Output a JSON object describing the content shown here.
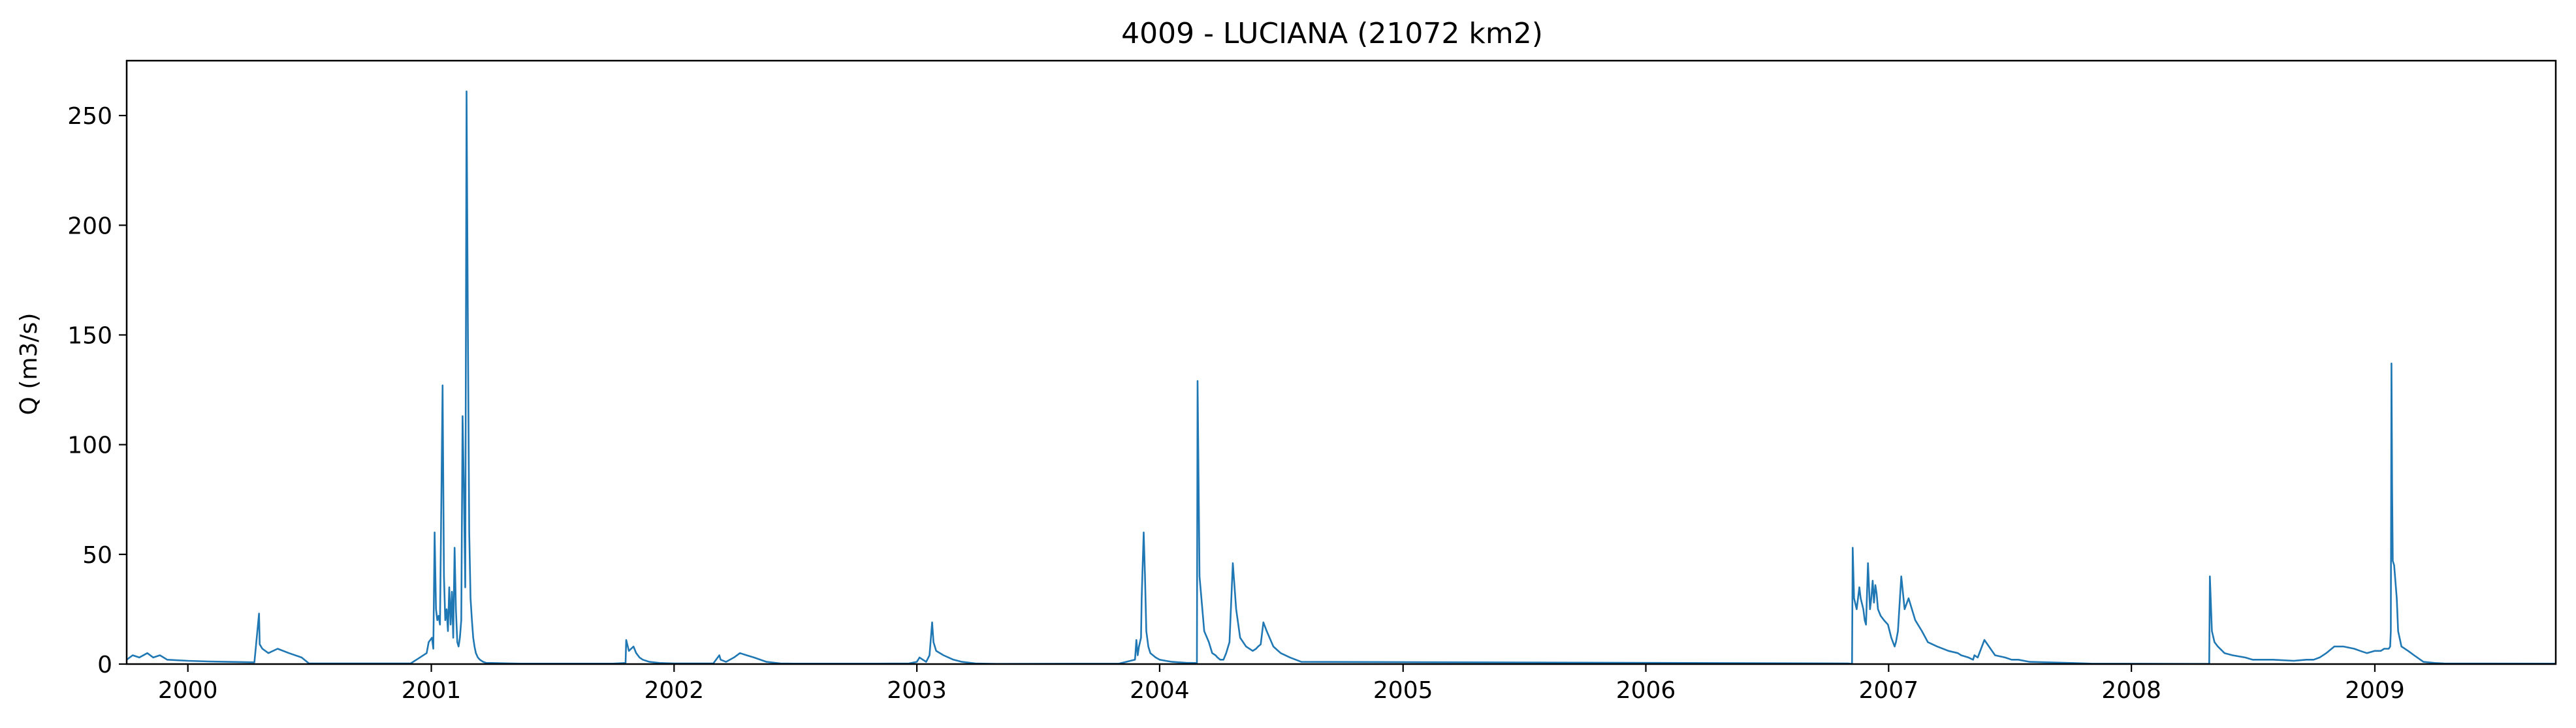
{
  "chart_data": {
    "type": "line",
    "title": "4009 - LUCIANA (21072 km2)",
    "xlabel": "",
    "ylabel": "Q (m3/s)",
    "xlim": [
      "1999-10-01",
      "2009-09-30"
    ],
    "ylim": [
      0,
      275
    ],
    "x_ticks": [
      "2000",
      "2001",
      "2002",
      "2003",
      "2004",
      "2005",
      "2006",
      "2007",
      "2008",
      "2009"
    ],
    "y_ticks": [
      0,
      50,
      100,
      150,
      200,
      250
    ],
    "grid": false,
    "line_color": "#1f77b4",
    "series": [
      {
        "x": [
          "1999-10-01",
          "1999-10-10",
          "1999-10-20",
          "1999-11-01",
          "1999-11-10",
          "1999-11-20",
          "1999-12-01",
          "2000-01-01",
          "2000-02-01",
          "2000-03-01",
          "2000-04-10",
          "2000-04-17",
          "2000-04-18",
          "2000-04-22",
          "2000-05-01",
          "2000-05-15",
          "2000-06-01",
          "2000-06-20",
          "2000-07-01",
          "2000-12-01",
          "2000-12-25",
          "2000-12-28",
          "2001-01-02",
          "2001-01-04",
          "2001-01-06",
          "2001-01-08",
          "2001-01-10",
          "2001-01-12",
          "2001-01-14",
          "2001-01-18",
          "2001-01-20",
          "2001-01-22",
          "2001-01-24",
          "2001-01-26",
          "2001-01-28",
          "2001-01-30",
          "2001-02-01",
          "2001-02-03",
          "2001-02-05",
          "2001-02-07",
          "2001-02-09",
          "2001-02-11",
          "2001-02-13",
          "2001-02-15",
          "2001-02-17",
          "2001-02-19",
          "2001-02-21",
          "2001-02-23",
          "2001-02-25",
          "2001-02-27",
          "2001-03-01",
          "2001-03-03",
          "2001-03-05",
          "2001-03-07",
          "2001-03-09",
          "2001-03-12",
          "2001-03-15",
          "2001-03-20",
          "2001-03-25",
          "2001-04-01",
          "2001-04-15",
          "2001-05-01",
          "2001-05-15",
          "2001-06-01",
          "2001-07-01",
          "2001-10-01",
          "2001-10-20",
          "2001-10-21",
          "2001-10-25",
          "2001-11-01",
          "2001-11-05",
          "2001-11-10",
          "2001-11-15",
          "2001-11-25",
          "2001-12-10",
          "2002-01-01",
          "2002-02-01",
          "2002-03-01",
          "2002-03-10",
          "2002-03-12",
          "2002-03-20",
          "2002-04-01",
          "2002-04-10",
          "2002-04-20",
          "2002-05-01",
          "2002-05-20",
          "2002-06-10",
          "2002-07-01",
          "2002-11-01",
          "2002-12-20",
          "2003-01-01",
          "2003-01-05",
          "2003-01-10",
          "2003-01-15",
          "2003-01-20",
          "2003-01-24",
          "2003-01-26",
          "2003-01-30",
          "2003-02-10",
          "2003-02-25",
          "2003-03-10",
          "2003-03-30",
          "2003-04-10",
          "2003-05-01",
          "2003-11-01",
          "2003-11-25",
          "2003-11-27",
          "2003-11-29",
          "2003-12-01",
          "2003-12-04",
          "2003-12-05",
          "2003-12-08",
          "2003-12-10",
          "2003-12-12",
          "2003-12-15",
          "2003-12-18",
          "2003-12-22",
          "2003-12-26",
          "2004-01-01",
          "2004-01-10",
          "2004-01-20",
          "2004-01-30",
          "2004-02-10",
          "2004-02-24",
          "2004-02-25",
          "2004-02-26",
          "2004-02-27",
          "2004-02-28",
          "2004-03-01",
          "2004-03-08",
          "2004-03-15",
          "2004-03-20",
          "2004-03-25",
          "2004-03-28",
          "2004-04-01",
          "2004-04-06",
          "2004-04-10",
          "2004-04-15",
          "2004-04-20",
          "2004-04-25",
          "2004-05-01",
          "2004-05-10",
          "2004-05-20",
          "2004-05-25",
          "2004-05-28",
          "2004-06-01",
          "2004-06-05",
          "2004-06-10",
          "2004-06-20",
          "2004-07-01",
          "2004-07-15",
          "2004-08-01",
          "2006-11-01",
          "2006-11-06",
          "2006-11-07",
          "2006-11-08",
          "2006-11-10",
          "2006-11-14",
          "2006-11-18",
          "2006-11-20",
          "2006-11-24",
          "2006-11-26",
          "2006-11-28",
          "2006-12-01",
          "2006-12-04",
          "2006-12-06",
          "2006-12-08",
          "2006-12-10",
          "2006-12-12",
          "2006-12-14",
          "2006-12-16",
          "2006-12-20",
          "2006-12-25",
          "2006-12-31",
          "2007-01-05",
          "2007-01-10",
          "2007-01-12",
          "2007-01-15",
          "2007-01-20",
          "2007-01-25",
          "2007-01-31",
          "2007-02-10",
          "2007-02-20",
          "2007-03-01",
          "2007-03-15",
          "2007-04-01",
          "2007-04-15",
          "2007-04-20",
          "2007-05-01",
          "2007-05-08",
          "2007-05-10",
          "2007-05-15",
          "2007-05-25",
          "2007-06-10",
          "2007-06-25",
          "2007-07-05",
          "2007-07-15",
          "2007-08-01",
          "2007-10-01",
          "2007-11-01",
          "2008-04-01",
          "2008-04-20",
          "2008-04-26",
          "2008-04-27",
          "2008-04-28",
          "2008-05-01",
          "2008-05-05",
          "2008-05-10",
          "2008-05-20",
          "2008-06-01",
          "2008-06-20",
          "2008-07-01",
          "2008-08-01",
          "2008-09-01",
          "2008-09-20",
          "2008-10-01",
          "2008-10-10",
          "2008-10-20",
          "2008-11-01",
          "2008-11-15",
          "2008-12-01",
          "2008-12-10",
          "2008-12-20",
          "2009-01-01",
          "2009-01-10",
          "2009-01-15",
          "2009-01-22",
          "2009-01-24",
          "2009-01-25",
          "2009-01-26",
          "2009-01-27",
          "2009-01-28",
          "2009-01-30",
          "2009-02-03",
          "2009-02-05",
          "2009-02-10",
          "2009-02-20",
          "2009-03-01",
          "2009-03-15",
          "2009-04-01",
          "2009-04-15",
          "2009-09-30"
        ],
        "y": [
          2,
          4,
          3,
          5,
          3,
          4,
          2,
          1.5,
          1.2,
          1,
          0.8,
          23,
          9,
          7,
          5,
          7,
          5,
          3,
          0.3,
          0.3,
          5,
          10,
          12,
          7,
          60,
          25,
          20,
          22,
          18,
          127,
          40,
          20,
          25,
          15,
          35,
          18,
          33,
          12,
          53,
          25,
          10,
          8,
          12,
          20,
          113,
          80,
          35,
          261,
          150,
          60,
          30,
          20,
          12,
          8,
          5,
          3,
          2,
          1,
          0.5,
          0.5,
          0.4,
          0.3,
          0.2,
          0.2,
          0.2,
          0.2,
          0.5,
          11,
          6,
          8,
          5,
          3,
          2,
          1,
          0.5,
          0.3,
          0.3,
          0.3,
          4,
          2,
          1,
          3,
          5,
          4,
          3,
          1,
          0.3,
          0.2,
          0.2,
          0.3,
          1,
          3,
          2,
          1,
          4,
          19,
          10,
          6,
          4,
          2,
          1,
          0.3,
          0.2,
          0.1,
          0.2,
          2,
          11,
          4,
          8,
          12,
          30,
          60,
          40,
          15,
          8,
          5,
          4,
          3,
          2,
          1.5,
          1,
          0.8,
          0.6,
          0.5,
          0.4,
          0.5,
          129,
          100,
          40,
          15,
          10,
          5,
          4,
          3,
          2,
          2,
          5,
          10,
          46,
          25,
          12,
          8,
          6,
          7,
          8,
          9,
          19,
          15,
          8,
          5,
          3,
          1,
          0.3,
          0.1,
          0.1,
          53,
          30,
          25,
          35,
          30,
          25,
          20,
          18,
          46,
          25,
          30,
          38,
          28,
          36,
          32,
          25,
          22,
          20,
          18,
          12,
          8,
          10,
          15,
          40,
          25,
          30,
          20,
          15,
          10,
          8,
          6,
          5,
          4,
          3,
          2,
          4,
          3,
          11,
          4,
          3,
          2,
          2,
          1,
          0.5,
          0.2,
          0.1,
          0.1,
          0.1,
          0.3,
          40,
          15,
          10,
          8,
          5,
          4,
          3,
          2,
          2,
          1.5,
          2,
          2,
          3,
          5,
          8,
          8,
          7,
          6,
          5,
          6,
          6,
          7,
          7,
          8,
          15,
          137,
          80,
          47,
          45,
          30,
          15,
          8,
          6,
          4,
          1,
          0.5,
          0.3,
          0.2
        ]
      }
    ]
  }
}
